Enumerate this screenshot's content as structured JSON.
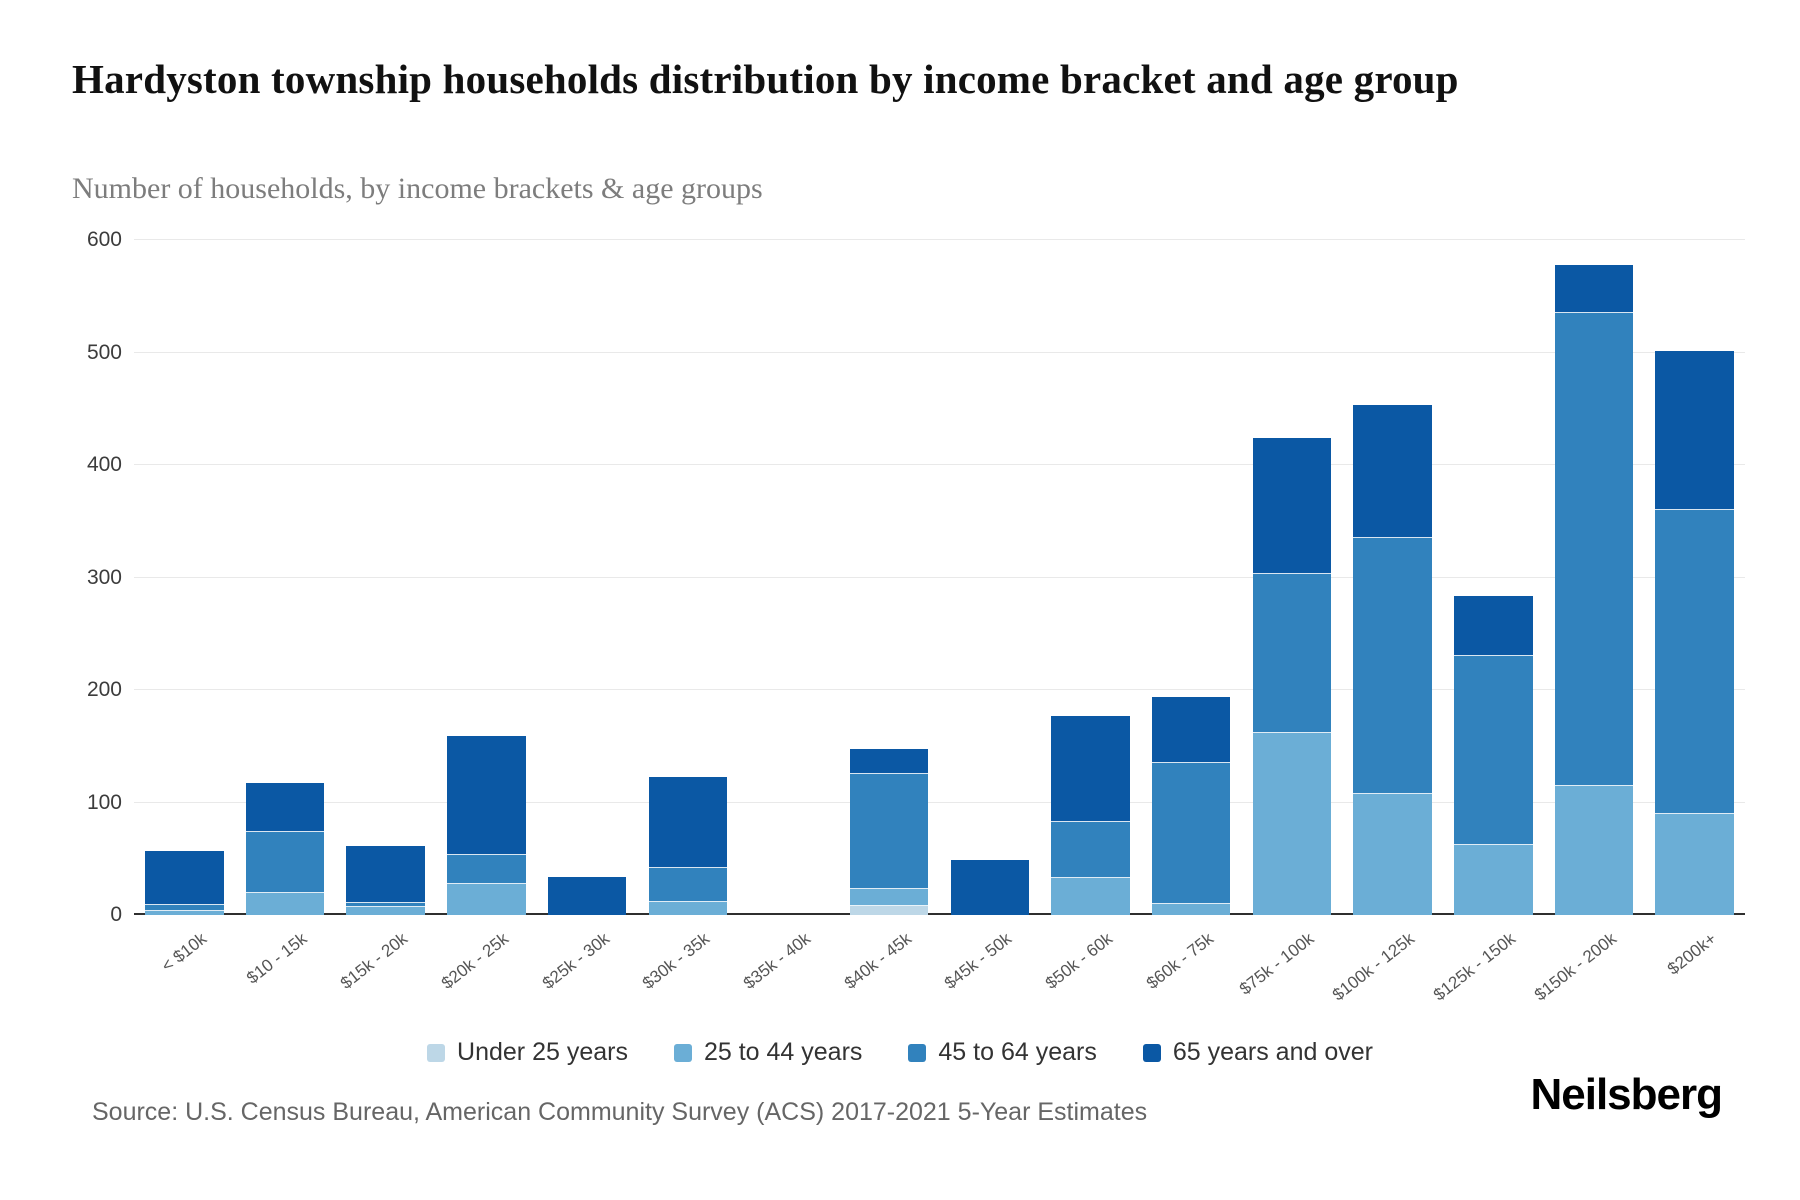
{
  "header": {
    "title": "Hardyston township households distribution by income bracket and age group",
    "subtitle": "Number of households, by income brackets & age groups"
  },
  "source": "Source: U.S. Census Bureau, American Community Survey (ACS) 2017-2021 5-Year Estimates",
  "logo": "Neilsberg",
  "chart_data": {
    "type": "bar",
    "stacked": true,
    "title": "Hardyston township households distribution by income bracket and age group",
    "xlabel": "",
    "ylabel": "Number of households",
    "ylim": [
      0,
      600
    ],
    "yticks": [
      0,
      100,
      200,
      300,
      400,
      500,
      600
    ],
    "grid": true,
    "legend_position": "bottom",
    "categories": [
      "< $10k",
      "$10 - 15k",
      "$15k - 20k",
      "$20k - 25k",
      "$25k - 30k",
      "$30k - 35k",
      "$35k - 40k",
      "$40k - 45k",
      "$45k - 50k",
      "$50k - 60k",
      "$60k - 75k",
      "$75k - 100k",
      "$100k - 125k",
      "$125k - 150k",
      "$150k - 200k",
      "$200k+"
    ],
    "series": [
      {
        "name": "Under 25 years",
        "color": "#bdd7e7",
        "values": [
          0,
          0,
          0,
          0,
          0,
          0,
          0,
          8,
          0,
          0,
          0,
          0,
          0,
          0,
          0,
          0
        ]
      },
      {
        "name": "25 to 44 years",
        "color": "#6baed6",
        "values": [
          4,
          20,
          7,
          28,
          0,
          12,
          0,
          15,
          0,
          33,
          10,
          162,
          108,
          62,
          115,
          90
        ]
      },
      {
        "name": "45 to 64 years",
        "color": "#3182bd",
        "values": [
          5,
          54,
          4,
          25,
          0,
          30,
          0,
          102,
          0,
          50,
          125,
          141,
          227,
          168,
          420,
          270
        ]
      },
      {
        "name": "65 years and over",
        "color": "#0b58a4",
        "values": [
          48,
          43,
          50,
          106,
          34,
          81,
          0,
          23,
          49,
          94,
          59,
          121,
          118,
          54,
          43,
          141
        ]
      }
    ]
  }
}
